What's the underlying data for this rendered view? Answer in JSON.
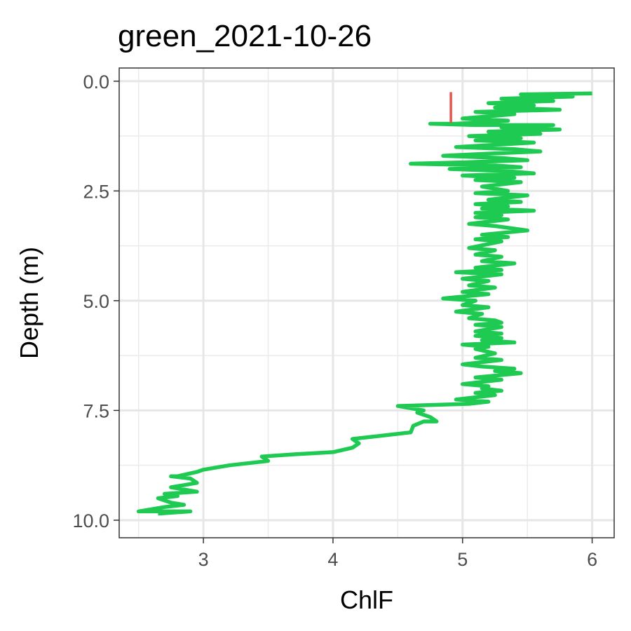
{
  "chart_data": {
    "type": "line",
    "title": "green_2021-10-26",
    "xlabel": "ChlF",
    "ylabel": "Depth (m)",
    "xlim": [
      2.35,
      6.17
    ],
    "ylim": [
      -0.3,
      10.4
    ],
    "y_reversed": true,
    "grid": true,
    "legend": "none",
    "x_ticks": [
      3,
      4,
      5,
      6
    ],
    "x_tick_labels": [
      "3",
      "4",
      "5",
      "6"
    ],
    "y_ticks": [
      0,
      2.5,
      5,
      7.5,
      10
    ],
    "y_tick_labels": [
      "0.0",
      "2.5",
      "5.0",
      "7.5",
      "10.0"
    ],
    "series": [
      {
        "color": "#1fca52",
        "points": [
          [
            6.0,
            0.28
          ],
          [
            5.45,
            0.3
          ],
          [
            5.85,
            0.35
          ],
          [
            5.3,
            0.4
          ],
          [
            5.7,
            0.45
          ],
          [
            5.2,
            0.5
          ],
          [
            5.55,
            0.55
          ],
          [
            5.25,
            0.6
          ],
          [
            5.75,
            0.65
          ],
          [
            5.1,
            0.7
          ],
          [
            5.4,
            0.75
          ],
          [
            5.0,
            0.85
          ],
          [
            5.35,
            0.9
          ],
          [
            4.95,
            0.97
          ],
          [
            4.75,
            0.97
          ],
          [
            5.1,
            1.0
          ],
          [
            5.7,
            1.0
          ],
          [
            5.3,
            1.05
          ],
          [
            5.75,
            1.1
          ],
          [
            5.2,
            1.15
          ],
          [
            5.6,
            1.2
          ],
          [
            5.05,
            1.25
          ],
          [
            5.45,
            1.3
          ],
          [
            5.1,
            1.35
          ],
          [
            5.55,
            1.4
          ],
          [
            4.95,
            1.5
          ],
          [
            5.4,
            1.55
          ],
          [
            5.6,
            1.6
          ],
          [
            5.2,
            1.65
          ],
          [
            4.85,
            1.7
          ],
          [
            5.3,
            1.75
          ],
          [
            5.5,
            1.8
          ],
          [
            5.0,
            1.85
          ],
          [
            4.6,
            1.88
          ],
          [
            5.25,
            1.92
          ],
          [
            5.45,
            1.96
          ],
          [
            4.9,
            2.0
          ],
          [
            5.35,
            2.05
          ],
          [
            5.55,
            2.1
          ],
          [
            5.0,
            2.15
          ],
          [
            5.4,
            2.2
          ],
          [
            5.1,
            2.25
          ],
          [
            5.45,
            2.3
          ],
          [
            5.15,
            2.4
          ],
          [
            5.35,
            2.5
          ],
          [
            5.1,
            2.55
          ],
          [
            5.5,
            2.6
          ],
          [
            5.2,
            2.7
          ],
          [
            5.45,
            2.75
          ],
          [
            5.1,
            2.8
          ],
          [
            5.35,
            2.85
          ],
          [
            5.15,
            2.9
          ],
          [
            5.55,
            2.95
          ],
          [
            5.1,
            3.0
          ],
          [
            5.3,
            3.05
          ],
          [
            5.1,
            3.1
          ],
          [
            5.35,
            3.15
          ],
          [
            5.05,
            3.25
          ],
          [
            5.25,
            3.3
          ],
          [
            5.5,
            3.4
          ],
          [
            5.15,
            3.5
          ],
          [
            5.35,
            3.55
          ],
          [
            5.1,
            3.6
          ],
          [
            5.3,
            3.65
          ],
          [
            5.05,
            3.8
          ],
          [
            5.25,
            3.85
          ],
          [
            5.1,
            3.95
          ],
          [
            5.3,
            4.0
          ],
          [
            5.15,
            4.1
          ],
          [
            5.4,
            4.15
          ],
          [
            5.1,
            4.25
          ],
          [
            5.3,
            4.3
          ],
          [
            4.95,
            4.35
          ],
          [
            5.3,
            4.4
          ],
          [
            5.0,
            4.5
          ],
          [
            5.2,
            4.55
          ],
          [
            5.05,
            4.65
          ],
          [
            5.25,
            4.7
          ],
          [
            5.0,
            4.8
          ],
          [
            5.2,
            4.85
          ],
          [
            4.85,
            4.95
          ],
          [
            5.1,
            5.0
          ],
          [
            5.0,
            5.1
          ],
          [
            5.2,
            5.15
          ],
          [
            4.95,
            5.25
          ],
          [
            5.15,
            5.3
          ],
          [
            5.05,
            5.4
          ],
          [
            5.25,
            5.45
          ],
          [
            5.3,
            5.5
          ],
          [
            5.1,
            5.55
          ],
          [
            5.3,
            5.6
          ],
          [
            5.1,
            5.7
          ],
          [
            5.3,
            5.75
          ],
          [
            5.1,
            5.8
          ],
          [
            5.3,
            5.85
          ],
          [
            5.15,
            5.9
          ],
          [
            5.4,
            5.95
          ],
          [
            5.0,
            6.0
          ],
          [
            5.2,
            6.05
          ],
          [
            5.1,
            6.1
          ],
          [
            5.25,
            6.2
          ],
          [
            5.1,
            6.3
          ],
          [
            5.3,
            6.35
          ],
          [
            5.0,
            6.45
          ],
          [
            5.15,
            6.5
          ],
          [
            5.4,
            6.55
          ],
          [
            5.25,
            6.6
          ],
          [
            5.45,
            6.65
          ],
          [
            5.1,
            6.75
          ],
          [
            5.3,
            6.8
          ],
          [
            5.0,
            6.9
          ],
          [
            5.2,
            6.95
          ],
          [
            5.15,
            7.0
          ],
          [
            5.3,
            7.05
          ],
          [
            5.1,
            7.1
          ],
          [
            5.25,
            7.15
          ],
          [
            4.95,
            7.25
          ],
          [
            5.2,
            7.3
          ],
          [
            5.05,
            7.35
          ],
          [
            4.5,
            7.4
          ],
          [
            4.7,
            7.5
          ],
          [
            4.65,
            7.55
          ],
          [
            4.75,
            7.65
          ],
          [
            4.8,
            7.75
          ],
          [
            4.7,
            7.75
          ],
          [
            4.62,
            7.85
          ],
          [
            4.6,
            8.0
          ],
          [
            4.3,
            8.1
          ],
          [
            4.15,
            8.15
          ],
          [
            4.2,
            8.25
          ],
          [
            4.15,
            8.35
          ],
          [
            4.0,
            8.45
          ],
          [
            3.7,
            8.5
          ],
          [
            3.45,
            8.55
          ],
          [
            3.5,
            8.65
          ],
          [
            3.2,
            8.75
          ],
          [
            3.0,
            8.85
          ],
          [
            2.95,
            8.9
          ],
          [
            2.8,
            9.0
          ],
          [
            2.75,
            9.0
          ],
          [
            2.9,
            9.05
          ],
          [
            2.95,
            9.15
          ],
          [
            2.85,
            9.2
          ],
          [
            2.75,
            9.25
          ],
          [
            2.95,
            9.35
          ],
          [
            2.7,
            9.4
          ],
          [
            2.8,
            9.45
          ],
          [
            2.65,
            9.5
          ],
          [
            2.75,
            9.6
          ],
          [
            2.85,
            9.65
          ],
          [
            2.7,
            9.7
          ],
          [
            2.5,
            9.8
          ],
          [
            2.9,
            9.8
          ],
          [
            2.65,
            9.85
          ]
        ]
      },
      {
        "color": "#e85550",
        "points": [
          [
            4.91,
            0.25
          ],
          [
            4.91,
            0.95
          ]
        ]
      }
    ]
  }
}
